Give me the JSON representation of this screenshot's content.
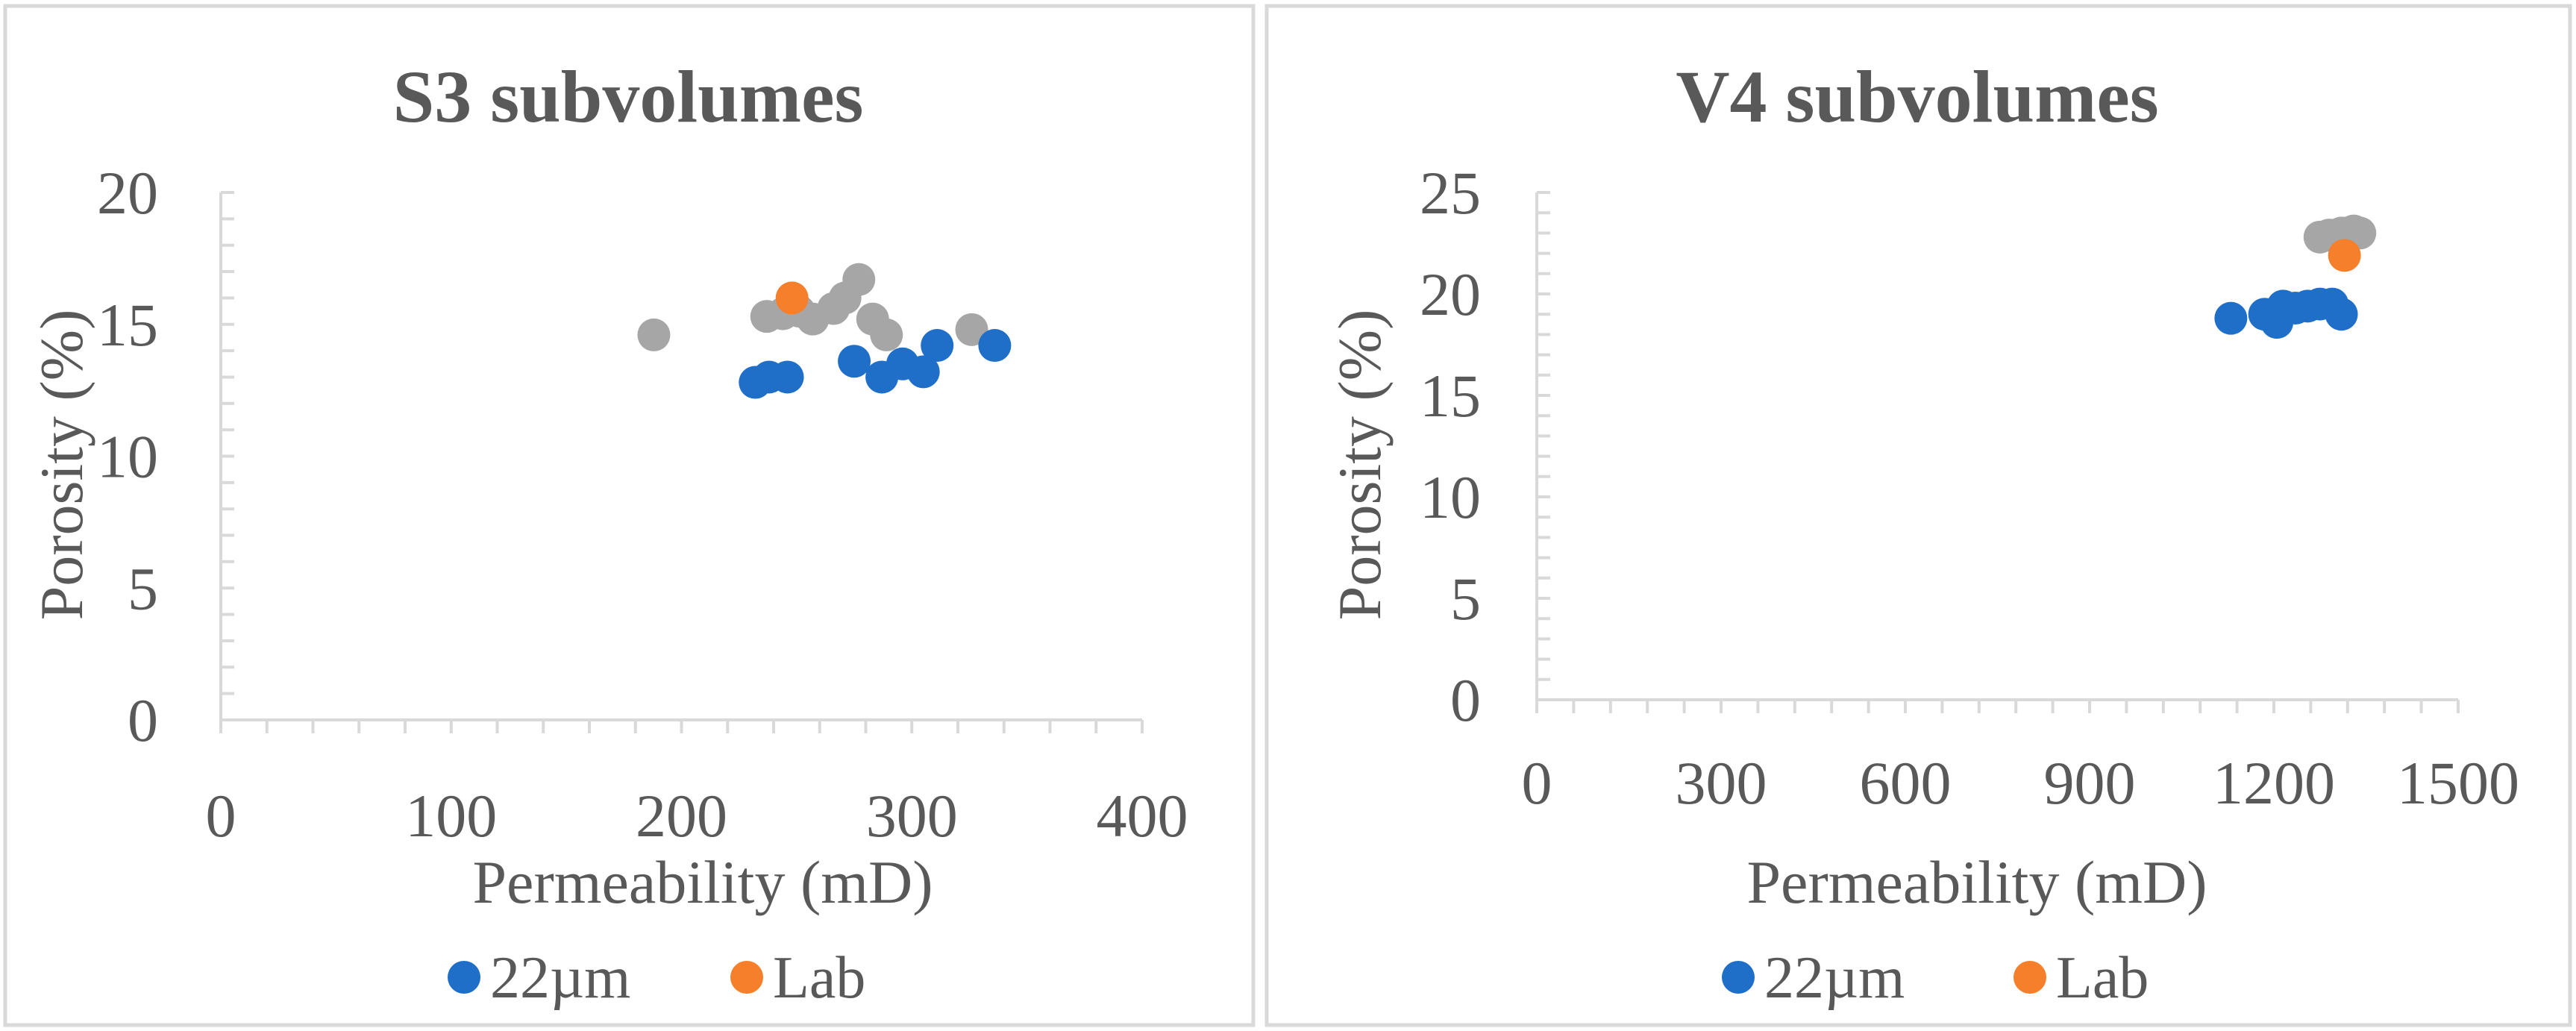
{
  "figure": {
    "colors": {
      "panel_border": "#d9d9d9",
      "axis": "#d9d9d9",
      "text": "#595959",
      "series_22um": "#1f6fc9",
      "series_lab": "#f57f2a",
      "series_other": "#a6a6a6"
    }
  },
  "chart_data": [
    {
      "type": "scatter",
      "title": "S3 subvolumes",
      "xlabel": "Permeability (mD)",
      "ylabel": "Porosity (%)",
      "xlim": [
        0,
        400
      ],
      "ylim": [
        0,
        20
      ],
      "x_major_ticks": [
        0,
        100,
        200,
        300,
        400
      ],
      "x_tick_labels": [
        "0",
        "100",
        "200",
        "300",
        "400"
      ],
      "y_major_ticks": [
        0,
        5,
        10,
        15,
        20
      ],
      "y_tick_labels": [
        "0",
        "5",
        "10",
        "15",
        "20"
      ],
      "x_minor_step": 20,
      "y_minor_step": 1,
      "grid": false,
      "legend_position": "bottom",
      "legend_entries": [
        "22µm",
        "Lab"
      ],
      "series": [
        {
          "name": "22µm",
          "color_key": "series_22um",
          "points": [
            {
              "x": 232,
              "y": 12.8
            },
            {
              "x": 238,
              "y": 13.0
            },
            {
              "x": 246,
              "y": 13.0
            },
            {
              "x": 275,
              "y": 13.6
            },
            {
              "x": 287,
              "y": 13.0
            },
            {
              "x": 296,
              "y": 13.5
            },
            {
              "x": 305,
              "y": 13.2
            },
            {
              "x": 311,
              "y": 14.2
            },
            {
              "x": 336,
              "y": 14.2
            }
          ]
        },
        {
          "name": "Lab",
          "color_key": "series_lab",
          "points": [
            {
              "x": 248,
              "y": 16.0
            }
          ]
        },
        {
          "name": "",
          "color_key": "series_other",
          "points": [
            {
              "x": 188,
              "y": 14.6
            },
            {
              "x": 237,
              "y": 15.3
            },
            {
              "x": 244,
              "y": 15.4
            },
            {
              "x": 251,
              "y": 15.5
            },
            {
              "x": 257,
              "y": 15.2
            },
            {
              "x": 266,
              "y": 15.6
            },
            {
              "x": 271,
              "y": 16.0
            },
            {
              "x": 277,
              "y": 16.7
            },
            {
              "x": 283,
              "y": 15.2
            },
            {
              "x": 289,
              "y": 14.6
            },
            {
              "x": 326,
              "y": 14.8
            }
          ]
        }
      ]
    },
    {
      "type": "scatter",
      "title": "V4 subvolumes",
      "xlabel": "Permeability (mD)",
      "ylabel": "Porosity (%)",
      "xlim": [
        0,
        1500
      ],
      "ylim": [
        0,
        25
      ],
      "x_major_ticks": [
        0,
        300,
        600,
        900,
        1200,
        1500
      ],
      "x_tick_labels": [
        "0",
        "300",
        "600",
        "900",
        "1200",
        "1500"
      ],
      "y_major_ticks": [
        0,
        5,
        10,
        15,
        20,
        25
      ],
      "y_tick_labels": [
        "0",
        "5",
        "10",
        "15",
        "20",
        "25"
      ],
      "x_minor_step": 60,
      "y_minor_step": 1,
      "grid": false,
      "legend_position": "bottom",
      "legend_entries": [
        "22µm",
        "Lab"
      ],
      "series": [
        {
          "name": "22µm",
          "color_key": "series_22um",
          "points": [
            {
              "x": 1130,
              "y": 18.8
            },
            {
              "x": 1185,
              "y": 19.0
            },
            {
              "x": 1205,
              "y": 18.6
            },
            {
              "x": 1215,
              "y": 19.4
            },
            {
              "x": 1235,
              "y": 19.3
            },
            {
              "x": 1255,
              "y": 19.4
            },
            {
              "x": 1275,
              "y": 19.5
            },
            {
              "x": 1295,
              "y": 19.5
            },
            {
              "x": 1310,
              "y": 19.0
            }
          ]
        },
        {
          "name": "Lab",
          "color_key": "series_lab",
          "points": [
            {
              "x": 1315,
              "y": 21.9
            }
          ]
        },
        {
          "name": "",
          "color_key": "series_other",
          "points": [
            {
              "x": 1275,
              "y": 22.8
            },
            {
              "x": 1290,
              "y": 22.9
            },
            {
              "x": 1300,
              "y": 22.9
            },
            {
              "x": 1310,
              "y": 23.0
            },
            {
              "x": 1320,
              "y": 23.0
            },
            {
              "x": 1330,
              "y": 23.1
            },
            {
              "x": 1340,
              "y": 23.0
            }
          ]
        }
      ]
    }
  ]
}
